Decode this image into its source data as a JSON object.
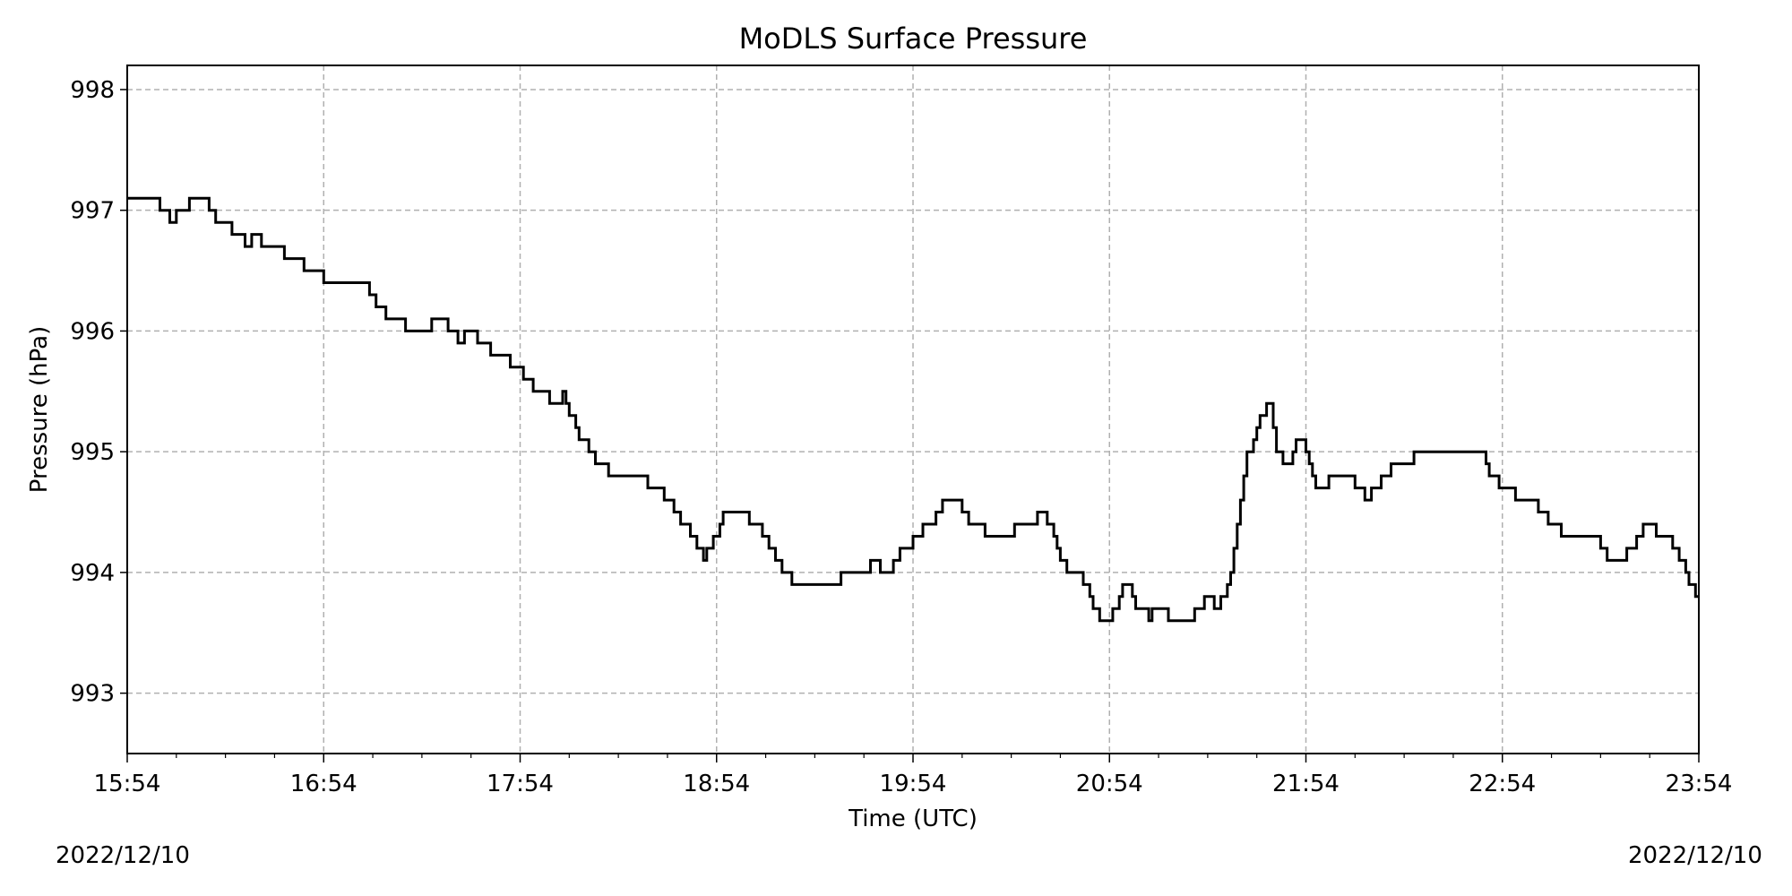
{
  "chart_data": {
    "type": "line",
    "title": "MoDLS Surface Pressure",
    "xlabel": "Time (UTC)",
    "ylabel": "Pressure (hPa)",
    "x_ticks": [
      "15:54",
      "16:54",
      "17:54",
      "18:54",
      "19:54",
      "20:54",
      "21:54",
      "22:54",
      "23:54"
    ],
    "y_ticks": [
      993,
      994,
      995,
      996,
      997,
      998
    ],
    "xlim": [
      "15:54",
      "23:54"
    ],
    "ylim": [
      992.5,
      998.2
    ],
    "grid": true,
    "line_color": "#000000",
    "grid_color": "#b0b0b0",
    "date_left": "2022/12/10",
    "date_right": "2022/12/10",
    "series": [
      {
        "step": true,
        "points": [
          [
            "15:54",
            997.1
          ],
          [
            "16:04",
            997.0
          ],
          [
            "16:07",
            996.9
          ],
          [
            "16:09",
            997.0
          ],
          [
            "16:13",
            997.1
          ],
          [
            "16:19",
            997.0
          ],
          [
            "16:21",
            996.9
          ],
          [
            "16:26",
            996.8
          ],
          [
            "16:30",
            996.7
          ],
          [
            "16:32",
            996.8
          ],
          [
            "16:35",
            996.7
          ],
          [
            "16:42",
            996.6
          ],
          [
            "16:48",
            996.5
          ],
          [
            "16:54",
            996.4
          ],
          [
            "17:08",
            996.3
          ],
          [
            "17:10",
            996.2
          ],
          [
            "17:13",
            996.1
          ],
          [
            "17:19",
            996.0
          ],
          [
            "17:27",
            996.1
          ],
          [
            "17:32",
            996.0
          ],
          [
            "17:35",
            995.9
          ],
          [
            "17:37",
            996.0
          ],
          [
            "17:41",
            995.9
          ],
          [
            "17:45",
            995.8
          ],
          [
            "17:51",
            995.7
          ],
          [
            "17:55",
            995.6
          ],
          [
            "17:58",
            995.5
          ],
          [
            "18:03",
            995.4
          ],
          [
            "18:07",
            995.5
          ],
          [
            "18:08",
            995.4
          ],
          [
            "18:09",
            995.3
          ],
          [
            "18:11",
            995.2
          ],
          [
            "18:12",
            995.1
          ],
          [
            "18:15",
            995.0
          ],
          [
            "18:17",
            994.9
          ],
          [
            "18:21",
            994.8
          ],
          [
            "18:33",
            994.7
          ],
          [
            "18:38",
            994.6
          ],
          [
            "18:41",
            994.5
          ],
          [
            "18:43",
            994.4
          ],
          [
            "18:46",
            994.3
          ],
          [
            "18:48",
            994.2
          ],
          [
            "18:50",
            994.1
          ],
          [
            "18:51",
            994.2
          ],
          [
            "18:53",
            994.3
          ],
          [
            "18:55",
            994.4
          ],
          [
            "18:56",
            994.5
          ],
          [
            "19:04",
            994.4
          ],
          [
            "19:08",
            994.3
          ],
          [
            "19:10",
            994.2
          ],
          [
            "19:12",
            994.1
          ],
          [
            "19:14",
            994.0
          ],
          [
            "19:17",
            993.9
          ],
          [
            "19:32",
            994.0
          ],
          [
            "19:41",
            994.1
          ],
          [
            "19:44",
            994.0
          ],
          [
            "19:48",
            994.1
          ],
          [
            "19:50",
            994.2
          ],
          [
            "19:54",
            994.3
          ],
          [
            "19:57",
            994.4
          ],
          [
            "20:01",
            994.5
          ],
          [
            "20:03",
            994.6
          ],
          [
            "20:09",
            994.5
          ],
          [
            "20:11",
            994.4
          ],
          [
            "20:16",
            994.3
          ],
          [
            "20:25",
            994.4
          ],
          [
            "20:32",
            994.5
          ],
          [
            "20:35",
            994.4
          ],
          [
            "20:37",
            994.3
          ],
          [
            "20:38",
            994.2
          ],
          [
            "20:39",
            994.1
          ],
          [
            "20:41",
            994.0
          ],
          [
            "20:46",
            993.9
          ],
          [
            "20:48",
            993.8
          ],
          [
            "20:49",
            993.7
          ],
          [
            "20:51",
            993.6
          ],
          [
            "20:55",
            993.7
          ],
          [
            "20:57",
            993.8
          ],
          [
            "20:58",
            993.9
          ],
          [
            "21:01",
            993.8
          ],
          [
            "21:02",
            993.7
          ],
          [
            "21:06",
            993.6
          ],
          [
            "21:07",
            993.7
          ],
          [
            "21:12",
            993.6
          ],
          [
            "21:20",
            993.7
          ],
          [
            "21:23",
            993.8
          ],
          [
            "21:26",
            993.7
          ],
          [
            "21:28",
            993.8
          ],
          [
            "21:30",
            993.9
          ],
          [
            "21:31",
            994.0
          ],
          [
            "21:32",
            994.2
          ],
          [
            "21:33",
            994.4
          ],
          [
            "21:34",
            994.6
          ],
          [
            "21:35",
            994.8
          ],
          [
            "21:36",
            995.0
          ],
          [
            "21:38",
            995.1
          ],
          [
            "21:39",
            995.2
          ],
          [
            "21:40",
            995.3
          ],
          [
            "21:42",
            995.4
          ],
          [
            "21:44",
            995.2
          ],
          [
            "21:45",
            995.0
          ],
          [
            "21:47",
            994.9
          ],
          [
            "21:50",
            995.0
          ],
          [
            "21:51",
            995.1
          ],
          [
            "21:54",
            995.0
          ],
          [
            "21:55",
            994.9
          ],
          [
            "21:56",
            994.8
          ],
          [
            "21:57",
            994.7
          ],
          [
            "22:01",
            994.8
          ],
          [
            "22:09",
            994.7
          ],
          [
            "22:12",
            994.6
          ],
          [
            "22:14",
            994.7
          ],
          [
            "22:17",
            994.8
          ],
          [
            "22:20",
            994.9
          ],
          [
            "22:27",
            995.0
          ],
          [
            "22:49",
            994.9
          ],
          [
            "22:50",
            994.8
          ],
          [
            "22:53",
            994.7
          ],
          [
            "22:58",
            994.6
          ],
          [
            "23:05",
            994.5
          ],
          [
            "23:08",
            994.4
          ],
          [
            "23:12",
            994.3
          ],
          [
            "23:24",
            994.2
          ],
          [
            "23:26",
            994.1
          ],
          [
            "23:32",
            994.2
          ],
          [
            "23:35",
            994.3
          ],
          [
            "23:37",
            994.4
          ],
          [
            "23:41",
            994.3
          ],
          [
            "23:46",
            994.2
          ],
          [
            "23:48",
            994.1
          ],
          [
            "23:50",
            994.0
          ],
          [
            "23:51",
            993.9
          ],
          [
            "23:53",
            993.8
          ],
          [
            "23:54",
            993.8
          ]
        ]
      }
    ]
  }
}
